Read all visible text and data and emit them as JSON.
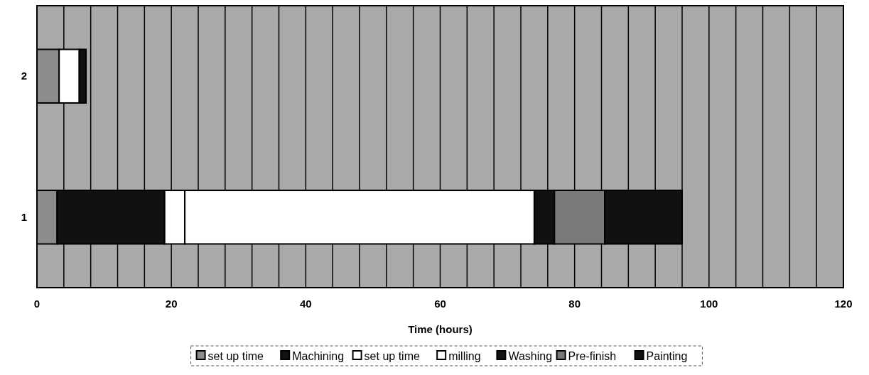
{
  "chart_data": {
    "type": "bar",
    "orientation": "horizontal",
    "stacked": true,
    "categories": [
      "2",
      "1"
    ],
    "xlabel": "Time (hours)",
    "xlim": [
      0,
      120
    ],
    "xticks": [
      0,
      {
        "value": 4,
        "label": null
      },
      {
        "value": 8,
        "label": null
      },
      {
        "value": 12,
        "label": null
      },
      {
        "value": 16,
        "label": null
      },
      20,
      {
        "value": 24,
        "label": null
      },
      {
        "value": 28,
        "label": null
      },
      {
        "value": 32,
        "label": null
      },
      {
        "value": 36,
        "label": null
      },
      40,
      {
        "value": 44,
        "label": null
      },
      {
        "value": 48,
        "label": null
      },
      {
        "value": 52,
        "label": null
      },
      {
        "value": 56,
        "label": null
      },
      60,
      {
        "value": 64,
        "label": null
      },
      {
        "value": 68,
        "label": null
      },
      {
        "value": 72,
        "label": null
      },
      {
        "value": 76,
        "label": null
      },
      80,
      {
        "value": 84,
        "label": null
      },
      {
        "value": 88,
        "label": null
      },
      {
        "value": 92,
        "label": null
      },
      {
        "value": 96,
        "label": null
      },
      100,
      {
        "value": 104,
        "label": null
      },
      {
        "value": 108,
        "label": null
      },
      {
        "value": 112,
        "label": null
      },
      {
        "value": 116,
        "label": null
      },
      120
    ],
    "grid": "x",
    "legend": "bottom",
    "series": [
      {
        "name": "set up time",
        "color": "#8c8c8c",
        "values": [
          3.3,
          3
        ]
      },
      {
        "name": "Machining",
        "color": "#111111",
        "values": [
          0,
          16
        ]
      },
      {
        "name": "set up time",
        "color": "#ffffff",
        "values": [
          0,
          3
        ]
      },
      {
        "name": "milling",
        "color": "#ffffff",
        "values": [
          3,
          52
        ]
      },
      {
        "name": "Washing",
        "color": "#111111",
        "values": [
          1,
          3
        ]
      },
      {
        "name": "Pre-finish",
        "color": "#7a7a7a",
        "values": [
          0,
          7.5
        ]
      },
      {
        "name": "Painting",
        "color": "#111111",
        "values": [
          0,
          11.5
        ]
      }
    ]
  }
}
